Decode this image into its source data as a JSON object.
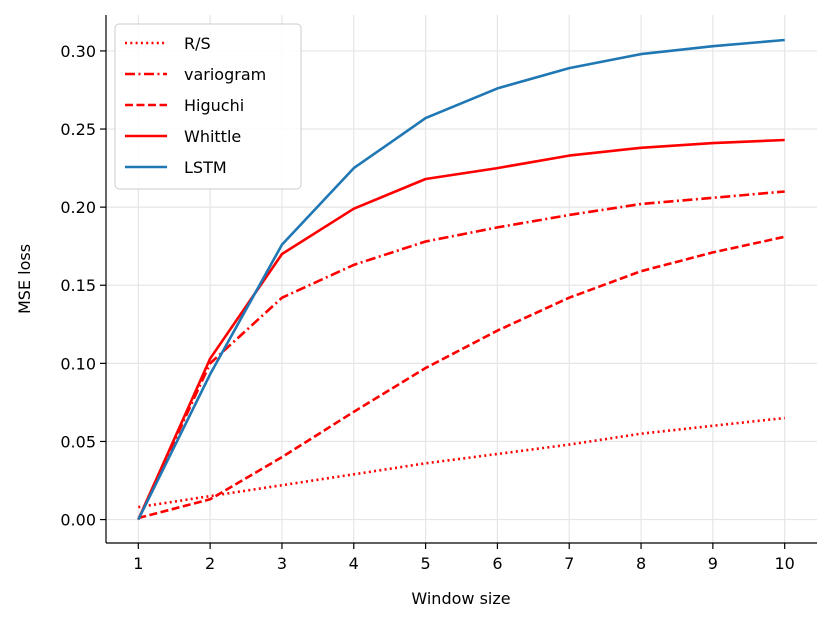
{
  "chart_data": {
    "type": "line",
    "xlabel": "Window size",
    "ylabel": "MSE loss",
    "x": [
      1,
      2,
      3,
      4,
      5,
      6,
      7,
      8,
      9,
      10
    ],
    "xlim": [
      0.55,
      10.45
    ],
    "ylim": [
      -0.015,
      0.323
    ],
    "xticks": [
      "1",
      "2",
      "3",
      "4",
      "5",
      "6",
      "7",
      "8",
      "9",
      "10"
    ],
    "yticks": [
      "0.00",
      "0.05",
      "0.10",
      "0.15",
      "0.20",
      "0.25",
      "0.30"
    ],
    "ytick_values": [
      0.0,
      0.05,
      0.1,
      0.15,
      0.2,
      0.25,
      0.3
    ],
    "grid": true,
    "legend_position": "top-left",
    "series": [
      {
        "name": "R/S",
        "color": "#ff0000",
        "style": "dotted",
        "values": [
          0.008,
          0.015,
          0.022,
          0.029,
          0.036,
          0.042,
          0.048,
          0.055,
          0.06,
          0.065
        ]
      },
      {
        "name": "variogram",
        "color": "#ff0000",
        "style": "dashdot",
        "values": [
          0.0,
          0.1,
          0.142,
          0.163,
          0.178,
          0.187,
          0.195,
          0.202,
          0.206,
          0.21
        ]
      },
      {
        "name": "Higuchi",
        "color": "#ff0000",
        "style": "dashed",
        "values": [
          0.001,
          0.013,
          0.04,
          0.069,
          0.097,
          0.121,
          0.142,
          0.159,
          0.171,
          0.181
        ]
      },
      {
        "name": "Whittle",
        "color": "#ff0000",
        "style": "solid",
        "values": [
          0.0,
          0.103,
          0.17,
          0.199,
          0.218,
          0.225,
          0.233,
          0.238,
          0.241,
          0.243
        ]
      },
      {
        "name": "LSTM",
        "color": "#1f77b4",
        "style": "solid",
        "values": [
          0.0,
          0.093,
          0.176,
          0.225,
          0.257,
          0.276,
          0.289,
          0.298,
          0.303,
          0.307
        ]
      }
    ]
  }
}
